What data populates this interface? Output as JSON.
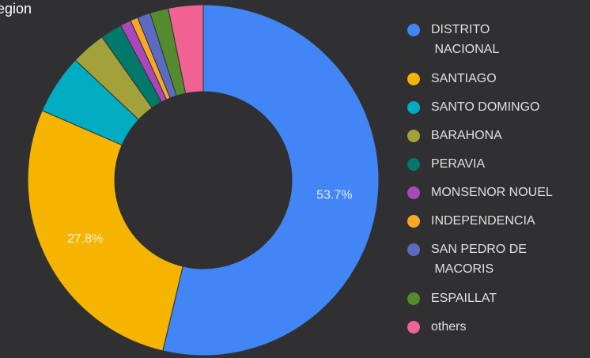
{
  "chart_data": {
    "type": "donut",
    "title": "egion",
    "categories": [
      "DISTRITO NACIONAL",
      "SANTIAGO",
      "SANTO DOMINGO",
      "BARAHONA",
      "PERAVIA",
      "MONSENOR NOUEL",
      "INDEPENDENCIA",
      "SAN PEDRO DE MACORIS",
      "ESPAILLAT",
      "others"
    ],
    "values": [
      53.7,
      27.8,
      5.5,
      3.2,
      2.0,
      1.0,
      0.7,
      1.2,
      1.7,
      3.2
    ],
    "value_labels": [
      "53.7%",
      "27.8%",
      null,
      null,
      null,
      null,
      null,
      null,
      null,
      null
    ],
    "colors": [
      "#4285f4",
      "#f4b400",
      "#00acc1",
      "#a3a23a",
      "#00796b",
      "#ab47bc",
      "#f9a825",
      "#5c6bc0",
      "#558b2f",
      "#f06292"
    ],
    "legend": "right"
  }
}
